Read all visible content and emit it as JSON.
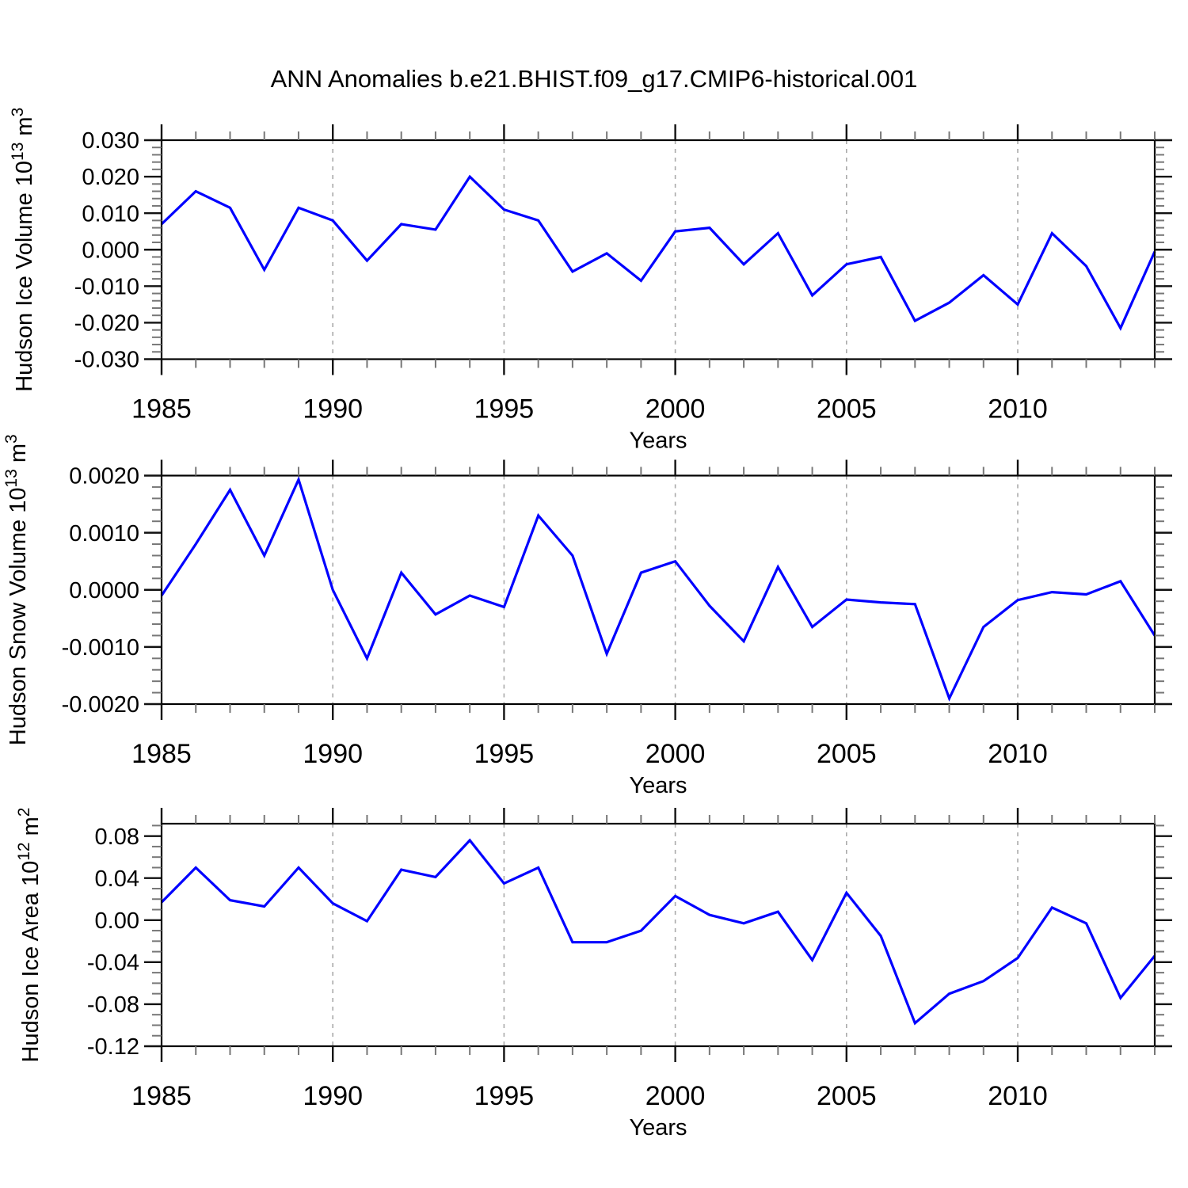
{
  "title": "ANN Anomalies b.e21.BHIST.f09_g17.CMIP6-historical.001",
  "xlabel": "Years",
  "colors": {
    "line": "#0000ff",
    "axis": "#000000",
    "grid": "#aaaaaa",
    "tick_major": "#111111",
    "tick_minor": "#777777",
    "text": "#000000",
    "background": "#ffffff"
  },
  "x_axis": {
    "start": 1985,
    "end": 2014,
    "major_ticks": [
      1985,
      1990,
      1995,
      2000,
      2005,
      2010
    ],
    "minor_step": 1,
    "gridline_years": [
      1990,
      1995,
      2000,
      2005,
      2010
    ]
  },
  "years": [
    1985,
    1986,
    1987,
    1988,
    1989,
    1990,
    1991,
    1992,
    1993,
    1994,
    1995,
    1996,
    1997,
    1998,
    1999,
    2000,
    2001,
    2002,
    2003,
    2004,
    2005,
    2006,
    2007,
    2008,
    2009,
    2010,
    2011,
    2012,
    2013,
    2014
  ],
  "chart_data": [
    {
      "type": "line",
      "name": "ice-volume",
      "ylabel": "Hudson Ice Volume 10^13 m^3",
      "ylabel_parts": [
        {
          "text": "Hudson Ice Volume 10"
        },
        {
          "text": "13",
          "sup": true
        },
        {
          "text": " m"
        },
        {
          "text": "3",
          "sup": true
        }
      ],
      "ylim": [
        -0.03,
        0.03
      ],
      "ytick_step": 0.01,
      "yminor_step": 0.002,
      "ytick_decimals": 3,
      "values": [
        0.007,
        0.016,
        0.0115,
        -0.0055,
        0.0115,
        0.008,
        -0.003,
        0.007,
        0.0055,
        0.02,
        0.011,
        0.008,
        -0.006,
        -0.001,
        -0.0085,
        0.005,
        0.006,
        -0.004,
        0.0045,
        -0.0125,
        -0.004,
        -0.002,
        -0.0195,
        -0.0145,
        -0.007,
        -0.015,
        0.0045,
        -0.0045,
        -0.0215,
        -0.0005
      ]
    },
    {
      "type": "line",
      "name": "snow-volume",
      "ylabel": "Hudson Snow Volume 10^13 m^3",
      "ylabel_parts": [
        {
          "text": "Hudson Snow Volume 10"
        },
        {
          "text": "13",
          "sup": true
        },
        {
          "text": " m"
        },
        {
          "text": "3",
          "sup": true
        }
      ],
      "ylim": [
        -0.002,
        0.002
      ],
      "ytick_step": 0.001,
      "yminor_step": 0.0002,
      "ytick_decimals": 4,
      "values": [
        -0.0001,
        0.0008,
        0.00175,
        0.0006,
        0.00193,
        0.0,
        -0.0012,
        0.0003,
        -0.00043,
        -0.0001,
        -0.0003,
        0.0013,
        0.0006,
        -0.00112,
        0.0003,
        0.0005,
        -0.00028,
        -0.0009,
        0.0004,
        -0.00065,
        -0.00017,
        -0.00022,
        -0.00025,
        -0.0019,
        -0.00065,
        -0.00018,
        -4e-05,
        -8e-05,
        0.00015,
        -0.0008
      ]
    },
    {
      "type": "line",
      "name": "ice-area",
      "ylabel": "Hudson Ice Area 10^12 m^2",
      "ylabel_parts": [
        {
          "text": "Hudson Ice Area 10"
        },
        {
          "text": "12",
          "sup": true
        },
        {
          "text": " m"
        },
        {
          "text": "2",
          "sup": true
        }
      ],
      "ylim": [
        -0.12,
        0.0918
      ],
      "ytick_step": 0.04,
      "yminor_step": 0.01,
      "ytick_decimals": 2,
      "values": [
        0.017,
        0.05,
        0.019,
        0.013,
        0.05,
        0.016,
        -0.001,
        0.048,
        0.041,
        0.076,
        0.035,
        0.05,
        -0.021,
        -0.021,
        -0.01,
        0.023,
        0.005,
        -0.003,
        0.008,
        -0.038,
        0.026,
        -0.015,
        -0.098,
        -0.07,
        -0.058,
        -0.036,
        0.012,
        -0.003,
        -0.074,
        -0.034
      ]
    }
  ]
}
